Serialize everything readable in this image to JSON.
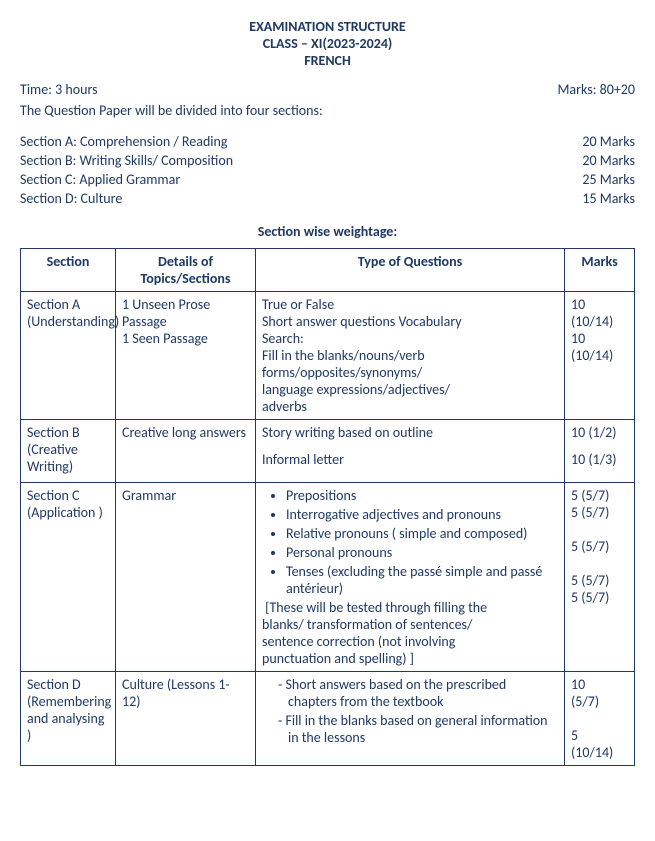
{
  "header": {
    "title1": "EXAMINATION STRUCTURE",
    "title2": "CLASS – XI(2023-2024)",
    "title3": "FRENCH"
  },
  "meta": {
    "time_label": "Time: 3 hours",
    "marks_label": "Marks: 80+20",
    "intro": "The Question Paper will be divided into four sections:"
  },
  "sections_overview": [
    {
      "label": "Section A: Comprehension / Reading",
      "marks": "20 Marks"
    },
    {
      "label": "Section B: Writing Skills/ Composition",
      "marks": "20 Marks"
    },
    {
      "label": "Section C: Applied Grammar",
      "marks": "25 Marks"
    },
    {
      "label": "Section D: Culture",
      "marks": "15 Marks"
    }
  ],
  "weightage_title": "Section wise weightage:",
  "table": {
    "headers": [
      "Section",
      "Details of Topics/Sections",
      "Type of Questions",
      "Marks"
    ],
    "rowA": {
      "section_l1": "Section A",
      "section_l2": "(Understanding)",
      "details_l1": "1 Unseen Prose",
      "details_l2": "Passage",
      "details_l3": "1 Seen Passage",
      "type_l1": "True or False",
      "type_l2": "Short answer questions Vocabulary",
      "type_l3": "Search:",
      "type_l4": "Fill in the blanks/nouns/verb",
      "type_l5": "forms/opposites/synonyms/",
      "type_l6": "language expressions/adjectives/",
      "type_l7": "adverbs",
      "marks_l1": "10",
      "marks_l2": "(10/14)",
      "marks_l3": "10",
      "marks_l4": "(10/14)"
    },
    "rowB": {
      "section_l1": "Section B",
      "section_l2": "(Creative",
      "section_l3": "Writing)",
      "details": "Creative long answers",
      "type_l1": "Story writing based on outline",
      "type_l2": "Informal letter",
      "marks_l1": "10 (1/2)",
      "marks_l2": "10 (1/3)"
    },
    "rowC": {
      "section_l1": "Section C",
      "section_l2": "(Application )",
      "details": "Grammar",
      "bullets": [
        "Prepositions",
        "Interrogative adjectives and pronouns",
        "Relative pronouns ( simple and composed)",
        "Personal pronouns",
        "Tenses (excluding the passé simple and passé antérieur)"
      ],
      "note_l1": "[These will be tested through filling the",
      "note_l2": "blanks/ transformation of sentences/",
      "note_l3": "sentence correction (not involving",
      "note_l4": "punctuation and spelling) ]",
      "marks_l1": "5 (5/7)",
      "marks_l2": "5 (5/7)",
      "marks_l3": "5 (5/7)",
      "marks_l4": "5 (5/7)",
      "marks_l5": "5 (5/7)"
    },
    "rowD": {
      "section_l1": "Section D",
      "section_l2": "(Remembering and analysing )",
      "details": "Culture (Lessons 1- 12)",
      "item1": "-   Short  answers  based  on  the prescribed  chapters  from  the textbook",
      "item2": "-   Fill in the blanks based on general information in the lessons",
      "marks_l1": "10",
      "marks_l2": "(5/7)",
      "marks_l3": "5",
      "marks_l4": "(10/14)"
    }
  }
}
